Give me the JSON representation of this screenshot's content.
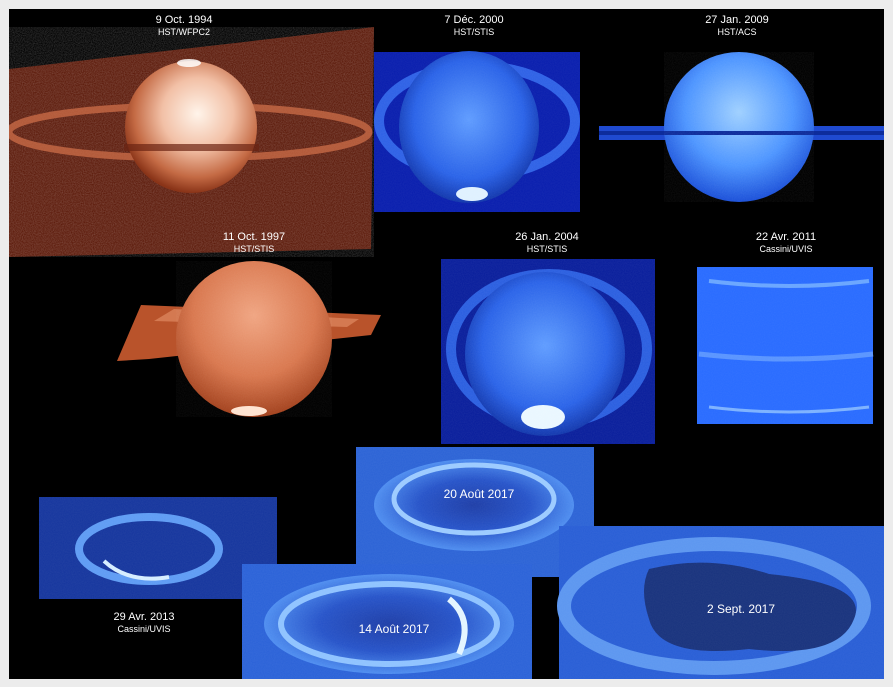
{
  "panels": [
    {
      "date": "9 Oct. 1994",
      "instrument": "HST/WFPC2"
    },
    {
      "date": "7 Déc. 2000",
      "instrument": "HST/STIS"
    },
    {
      "date": "27 Jan. 2009",
      "instrument": "HST/ACS"
    },
    {
      "date": "11 Oct. 1997",
      "instrument": "HST/STIS"
    },
    {
      "date": "26 Jan. 2004",
      "instrument": "HST/STIS"
    },
    {
      "date": "22 Avr. 2011",
      "instrument": "Cassini/UVIS"
    },
    {
      "date": "29 Avr. 2013",
      "instrument": "Cassini/UVIS"
    },
    {
      "date": "20 Août 2017"
    },
    {
      "date": "14 Août 2017"
    },
    {
      "date": "2 Sept. 2017"
    }
  ],
  "colors": {
    "background": "#000000",
    "frame": "#ececec",
    "hst_1994": "#a0462a",
    "hst_1997": "#c8603c",
    "uv_blue": "#2a6cff",
    "aurora": "#bfe6ff"
  }
}
